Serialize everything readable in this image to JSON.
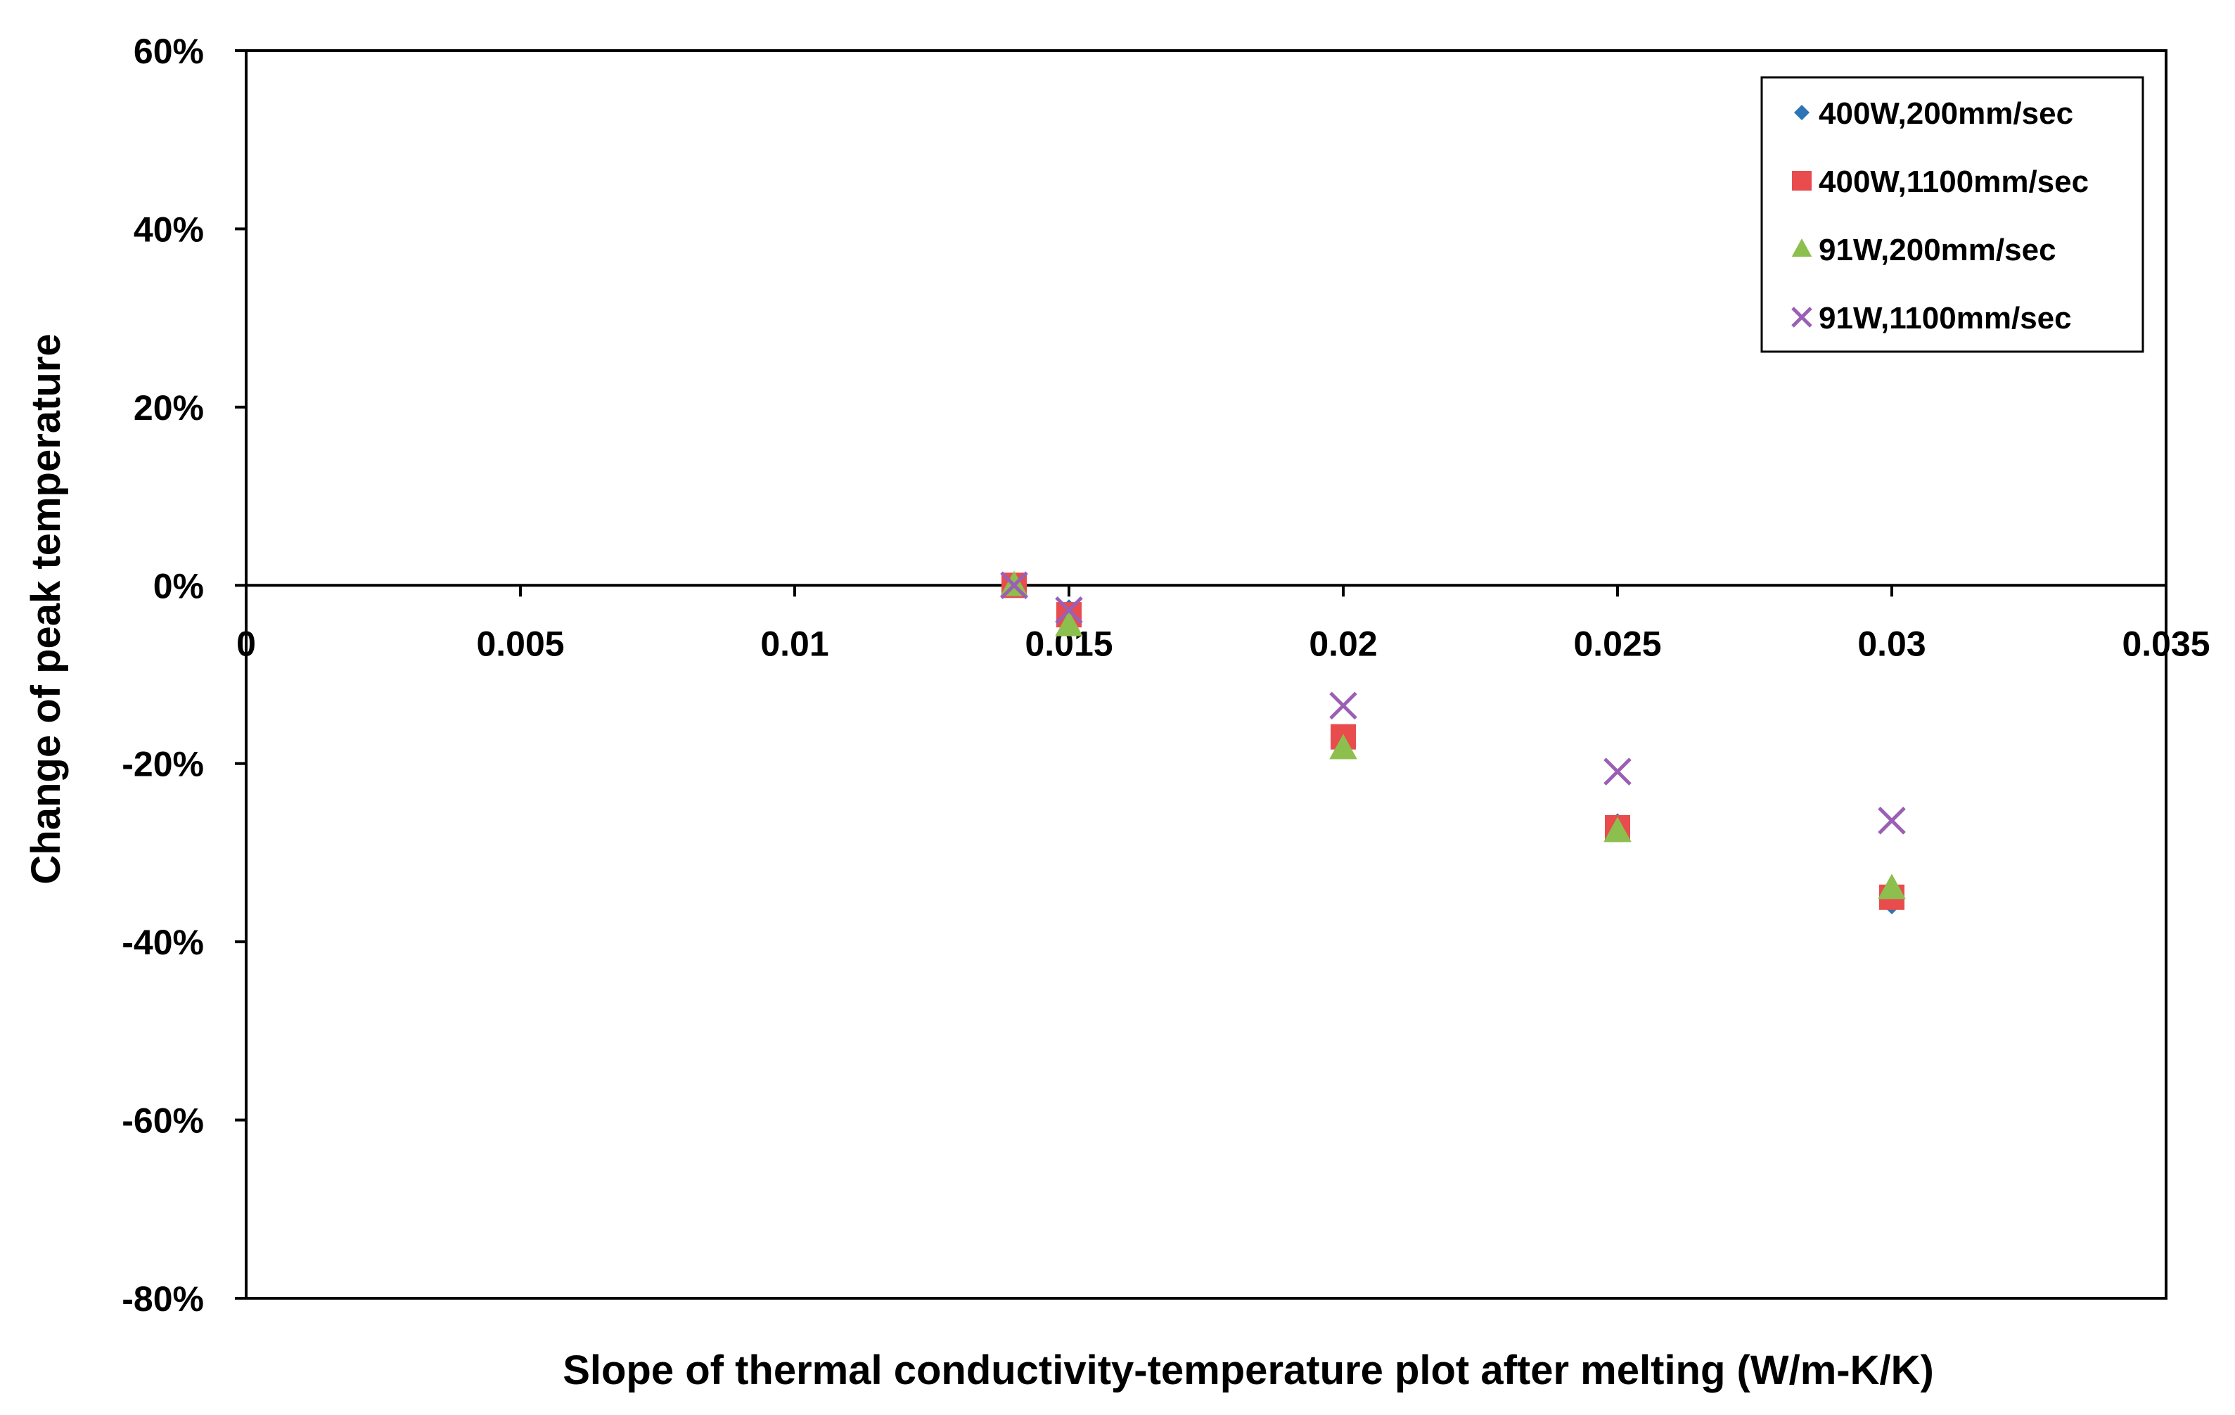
{
  "chart_data": {
    "type": "scatter",
    "xlabel": "Slope of thermal conductivity-temperature plot after melting (W/m-K/K)",
    "ylabel": "Change of peak temperature",
    "xlim": [
      0,
      0.035
    ],
    "ylim": [
      -0.8,
      0.6
    ],
    "x_ticks": [
      0,
      0.005,
      0.01,
      0.015,
      0.02,
      0.025,
      0.03,
      0.035
    ],
    "x_tick_labels": [
      "0",
      "0.005",
      "0.01",
      "0.015",
      "0.02",
      "0.025",
      "0.03",
      "0.035"
    ],
    "y_ticks": [
      0.6,
      0.4,
      0.2,
      0,
      -0.2,
      -0.4,
      -0.6,
      -0.8
    ],
    "y_tick_labels": [
      "60%",
      "40%",
      "20%",
      "0%",
      "-20%",
      "-40%",
      "-60%",
      "-80%"
    ],
    "grid": false,
    "legend_position": "top-right",
    "series": [
      {
        "name": "400W,200mm/sec",
        "marker": "diamond",
        "color": "#2E75B6",
        "x": [
          0.014,
          0.015,
          0.02,
          0.025,
          0.03
        ],
        "y": [
          0.0,
          -0.03,
          -0.17,
          -0.27,
          -0.355
        ]
      },
      {
        "name": "400W,1100mm/sec",
        "marker": "square",
        "color": "#E84C4C",
        "x": [
          0.014,
          0.015,
          0.02,
          0.025,
          0.03
        ],
        "y": [
          0.0,
          -0.033,
          -0.17,
          -0.272,
          -0.35
        ]
      },
      {
        "name": "91W,200mm/sec",
        "marker": "triangle",
        "color": "#8DBF4E",
        "x": [
          0.014,
          0.015,
          0.02,
          0.025,
          0.03
        ],
        "y": [
          0.0,
          -0.045,
          -0.183,
          -0.276,
          -0.34
        ]
      },
      {
        "name": "91W,1100mm/sec",
        "marker": "x",
        "color": "#9B5FB5",
        "x": [
          0.014,
          0.015,
          0.02,
          0.025,
          0.03
        ],
        "y": [
          0.0,
          -0.028,
          -0.135,
          -0.209,
          -0.264
        ]
      }
    ]
  }
}
